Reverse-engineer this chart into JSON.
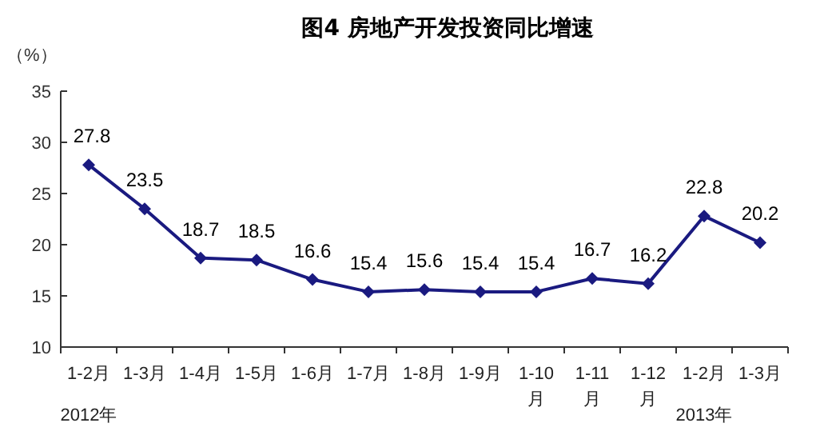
{
  "chart_data": {
    "type": "line",
    "title": "图4 房地产开发投资同比增速",
    "ylabel": "（%）",
    "categories": [
      "1-2月",
      "1-3月",
      "1-4月",
      "1-5月",
      "1-6月",
      "1-7月",
      "1-8月",
      "1-9月",
      "1-10月",
      "1-11月",
      "1-12月",
      "1-2月",
      "1-3月"
    ],
    "series": [
      {
        "color": "#1a1a80",
        "values": [
          27.8,
          23.5,
          18.7,
          18.5,
          16.6,
          15.4,
          15.6,
          15.4,
          15.4,
          16.7,
          16.2,
          22.8,
          20.2
        ]
      }
    ],
    "ylim": [
      10,
      35
    ],
    "yticks": [
      10,
      15,
      20,
      25,
      30,
      35
    ],
    "marker": "diamond",
    "data_labels": true,
    "grid": false,
    "annotations": [
      "2012年",
      "2013年"
    ]
  }
}
